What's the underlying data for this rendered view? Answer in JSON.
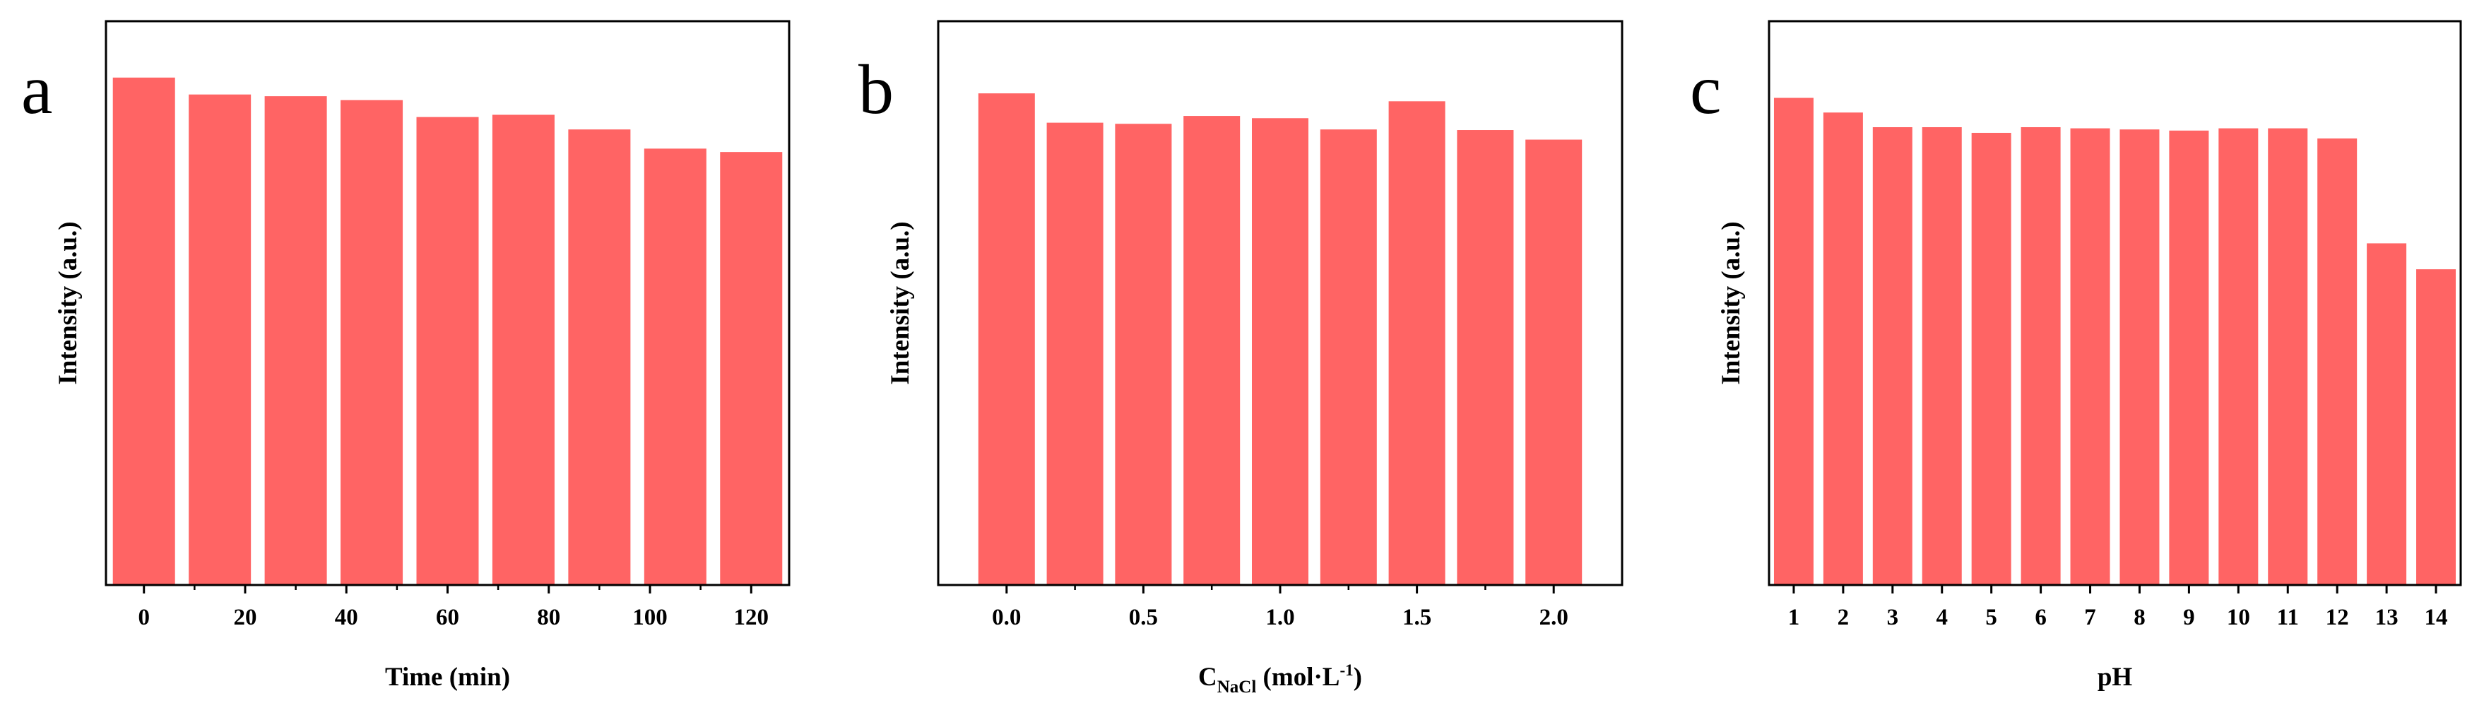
{
  "chart_data": [
    {
      "panel": "a",
      "type": "bar",
      "categories": [
        "0",
        "20",
        "40",
        "60",
        "80",
        "100",
        "120"
      ],
      "x": [
        0,
        15,
        30,
        45,
        60,
        75,
        90,
        105,
        120
      ],
      "values": [
        0.9,
        0.87,
        0.867,
        0.86,
        0.83,
        0.834,
        0.808,
        0.774,
        0.768
      ],
      "color": "#ff6464",
      "xlabel": "Time (min)",
      "ylabel": "Intensity (a.u.)",
      "xlim": [
        -7.5,
        127.5
      ],
      "ylim": [
        0,
        1
      ],
      "yticks_shown": false
    },
    {
      "panel": "b",
      "type": "bar",
      "categories": [
        "0.0",
        "0.5",
        "1.0",
        "1.5",
        "2.0"
      ],
      "x": [
        0,
        0.25,
        0.5,
        0.75,
        1.0,
        1.25,
        1.5,
        1.75,
        2.0
      ],
      "values": [
        0.872,
        0.82,
        0.818,
        0.832,
        0.828,
        0.808,
        0.858,
        0.807,
        0.79
      ],
      "color": "#ff6464",
      "xlabel": "C",
      "xlabel_sub": "NaCl",
      "xlabel_unit": "(mol·L",
      "xlabel_sup": "-1",
      "xlabel_close": ")",
      "ylabel": "Intensity (a.u.)",
      "xlim": [
        -0.25,
        2.25
      ],
      "ylim": [
        0,
        1
      ],
      "yticks_shown": false
    },
    {
      "panel": "c",
      "type": "bar",
      "categories": [
        "1",
        "2",
        "3",
        "4",
        "5",
        "6",
        "7",
        "8",
        "9",
        "10",
        "11",
        "12",
        "13",
        "14"
      ],
      "x": [
        1,
        2,
        3,
        4,
        5,
        6,
        7,
        8,
        9,
        10,
        11,
        12,
        13,
        14
      ],
      "values": [
        0.864,
        0.838,
        0.812,
        0.812,
        0.802,
        0.812,
        0.81,
        0.808,
        0.806,
        0.81,
        0.81,
        0.792,
        0.606,
        0.56
      ],
      "color": "#ff6464",
      "xlabel": "pH",
      "ylabel": "Intensity (a.u.)",
      "xlim": [
        0.5,
        14.5
      ],
      "ylim": [
        0,
        1
      ],
      "yticks_shown": false
    }
  ]
}
